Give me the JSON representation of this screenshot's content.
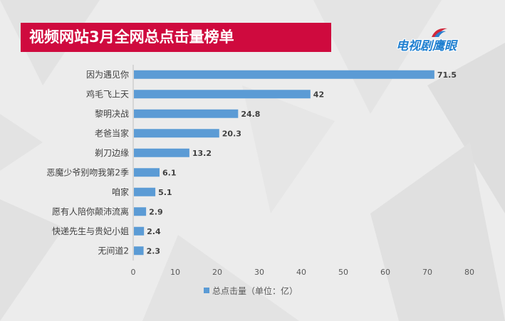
{
  "header": {
    "title": "视频网站3月全网总点击量榜单",
    "logo_text": "电视剧鹰眼"
  },
  "colors": {
    "bar": "#5b9bd5",
    "title_bg": "#cf0a3e",
    "text": "#404040"
  },
  "chart_data": {
    "type": "bar",
    "orientation": "horizontal",
    "title": "视频网站3月全网总点击量榜单",
    "categories": [
      "因为遇见你",
      "鸡毛飞上天",
      "黎明决战",
      "老爸当家",
      "剃刀边缘",
      "恶魔少爷别吻我第2季",
      "咱家",
      "愿有人陪你颠沛流离",
      "快递先生与贵妃小姐",
      "无间道2"
    ],
    "series": [
      {
        "name": "总点击量（单位：亿）",
        "values": [
          71.5,
          42,
          24.8,
          20.3,
          13.2,
          6.1,
          5.1,
          2.9,
          2.4,
          2.3
        ]
      }
    ],
    "value_labels": [
      "71.5",
      "42",
      "24.8",
      "20.3",
      "13.2",
      "6.1",
      "5.1",
      "2.9",
      "2.4",
      "2.3"
    ],
    "xlim": [
      0,
      80
    ],
    "xticks": [
      "0",
      "10",
      "20",
      "30",
      "40",
      "50",
      "60",
      "70",
      "80"
    ],
    "legend": "bottom",
    "grid": false
  }
}
